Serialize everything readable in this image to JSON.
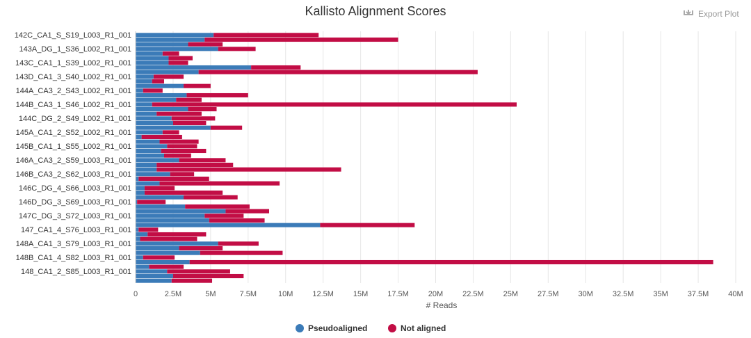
{
  "chart_data": {
    "type": "stacked_bar_horizontal",
    "title": "Kallisto Alignment Scores",
    "x_label": "# Reads",
    "categories": [
      "142C_CA1_S_S19_L003_R1_001",
      null,
      null,
      "143A_DG_1_S36_L002_R1_001",
      null,
      null,
      "143C_CA1_1_S39_L002_R1_001",
      null,
      null,
      "143D_CA1_3_S40_L002_R1_001",
      null,
      null,
      "144A_CA3_2_S43_L002_R1_001",
      null,
      null,
      "144B_CA3_1_S46_L002_R1_001",
      null,
      null,
      "144C_DG_2_S49_L002_R1_001",
      null,
      null,
      "145A_CA1_2_S52_L002_R1_001",
      null,
      null,
      "145B_CA1_1_S55_L002_R1_001",
      null,
      null,
      "146A_CA3_2_S59_L003_R1_001",
      null,
      null,
      "146B_CA3_2_S62_L003_R1_001",
      null,
      null,
      "146C_DG_4_S66_L003_R1_001",
      null,
      null,
      "146D_DG_3_S69_L003_R1_001",
      null,
      null,
      "147C_DG_3_S72_L003_R1_001",
      null,
      null,
      "147_CA1_4_S76_L003_R1_001",
      null,
      null,
      "148A_CA1_3_S79_L003_R1_001",
      null,
      null,
      "148B_CA1_4_S82_L003_R1_001",
      null,
      null,
      "148_CA1_2_S85_L003_R1_001",
      null,
      null
    ],
    "series": [
      {
        "name": "Pseudoaligned",
        "color": "#3b7bb8",
        "values": [
          5200000,
          4600000,
          3500000,
          5500000,
          1800000,
          2200000,
          2200000,
          7700000,
          4200000,
          1200000,
          1100000,
          3200000,
          500000,
          3400000,
          2700000,
          1100000,
          3500000,
          1400000,
          2400000,
          2500000,
          5000000,
          1800000,
          400000,
          1600000,
          2100000,
          1700000,
          1900000,
          2900000,
          1400000,
          1400000,
          2300000,
          200000,
          1600000,
          600000,
          600000,
          3200000,
          100000,
          3300000,
          6000000,
          4600000,
          4900000,
          12300000,
          200000,
          800000,
          300000,
          5500000,
          2900000,
          4300000,
          500000,
          3600000,
          900000,
          2100000,
          2500000,
          2400000
        ]
      },
      {
        "name": "Not aligned",
        "color": "#c20d45",
        "values": [
          7000000,
          12900000,
          2300000,
          2500000,
          1100000,
          1600000,
          1300000,
          3300000,
          18600000,
          2000000,
          800000,
          1800000,
          1300000,
          4100000,
          1700000,
          24300000,
          1900000,
          3000000,
          2900000,
          2200000,
          2100000,
          1100000,
          2700000,
          2600000,
          2000000,
          3000000,
          1800000,
          3100000,
          5100000,
          12300000,
          1600000,
          4700000,
          8000000,
          2000000,
          5200000,
          3600000,
          1900000,
          4300000,
          2900000,
          2600000,
          3700000,
          6300000,
          1300000,
          3900000,
          3800000,
          2700000,
          2900000,
          5500000,
          2100000,
          34900000,
          2300000,
          4200000,
          4700000,
          2700000
        ]
      }
    ],
    "xlim": [
      0,
      40000000
    ],
    "xticks": [
      0,
      {
        "value": 2500000,
        "label": "2.5M"
      },
      {
        "value": 5000000,
        "label": "5M"
      },
      {
        "value": 7500000,
        "label": "7.5M"
      },
      {
        "value": 10000000,
        "label": "10M"
      },
      {
        "value": 12500000,
        "label": "12.5M"
      },
      {
        "value": 15000000,
        "label": "15M"
      },
      {
        "value": 17500000,
        "label": "17.5M"
      },
      {
        "value": 20000000,
        "label": "20M"
      },
      {
        "value": 22500000,
        "label": "22.5M"
      },
      {
        "value": 25000000,
        "label": "25M"
      },
      {
        "value": 27500000,
        "label": "27.5M"
      },
      {
        "value": 30000000,
        "label": "30M"
      },
      {
        "value": 32500000,
        "label": "32.5M"
      },
      {
        "value": 35000000,
        "label": "35M"
      },
      {
        "value": 37500000,
        "label": "37.5M"
      },
      {
        "value": 40000000,
        "label": "40M"
      }
    ],
    "grid": true,
    "legend": "bottom"
  },
  "export_button": "Export Plot"
}
